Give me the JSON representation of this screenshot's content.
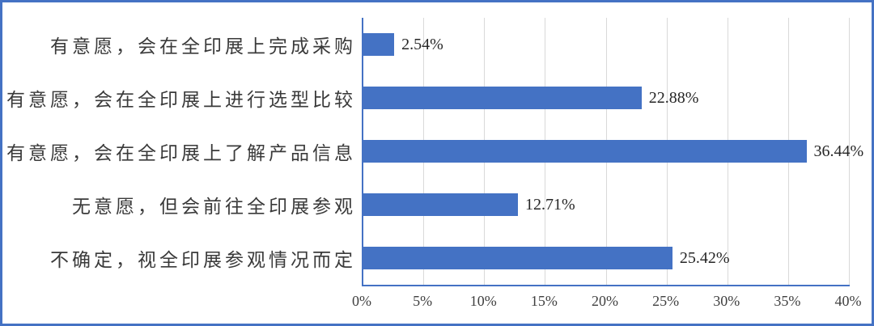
{
  "chart_data": {
    "type": "bar",
    "orientation": "horizontal",
    "title": "",
    "categories": [
      "有意愿，会在全印展上完成采购",
      "有意愿，会在全印展上进行选型比较",
      "有意愿，会在全印展上了解产品信息",
      "无意愿，但会前往全印展参观",
      "不确定，视全印展参观情况而定"
    ],
    "values": [
      2.54,
      22.88,
      36.44,
      12.71,
      25.42
    ],
    "value_labels": [
      "2.54%",
      "22.88%",
      "36.44%",
      "12.71%",
      "25.42%"
    ],
    "xlabel": "",
    "ylabel": "",
    "xlim": [
      0,
      40
    ],
    "x_tick_labels": [
      "0%",
      "5%",
      "10%",
      "15%",
      "20%",
      "25%",
      "30%",
      "35%",
      "40%"
    ],
    "grid": "vertical-gridlines",
    "legend": "none",
    "colors": {
      "bar": "#4472C4",
      "axis_line": "#4472C4",
      "gridline": "#D9D9D9",
      "frame_border": "#4472C4",
      "category_text": "#3A3A3A",
      "value_text": "#262626",
      "tick_text": "#404040"
    }
  }
}
